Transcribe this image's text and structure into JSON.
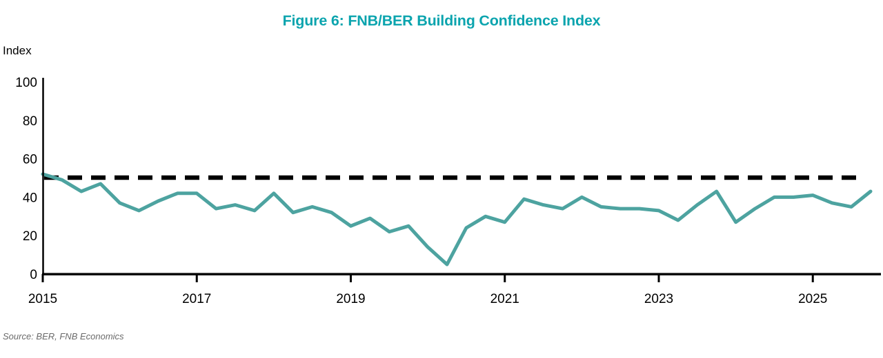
{
  "title": "Figure 6: FNB/BER Building Confidence Index",
  "y_axis_label": "Index",
  "source_note": "Source: BER, FNB Economics",
  "colors": {
    "title_teal": "#0ba4ae",
    "series_teal": "#4da3a0",
    "benchmark_black": "#000000",
    "axis_black": "#000000",
    "source_gray": "#6a6a6a"
  },
  "chart_data": {
    "type": "line",
    "title": "Figure 6: FNB/BER Building Confidence Index",
    "xlabel": "",
    "ylabel": "Index",
    "ylim": [
      0,
      100
    ],
    "y_ticks": [
      0,
      20,
      40,
      60,
      80,
      100
    ],
    "x_tick_labels": [
      "2015",
      "2017",
      "2019",
      "2021",
      "2023",
      "2025"
    ],
    "frequency": "quarterly",
    "grid": false,
    "legend": "none",
    "reference_line": {
      "value": 50,
      "style": "dashed",
      "color": "#000000"
    },
    "series": [
      {
        "name": "FNB/BER Building Confidence Index",
        "color": "#4da3a0",
        "quarters": [
          "2015Q1",
          "2015Q2",
          "2015Q3",
          "2015Q4",
          "2016Q1",
          "2016Q2",
          "2016Q3",
          "2016Q4",
          "2017Q1",
          "2017Q2",
          "2017Q3",
          "2017Q4",
          "2018Q1",
          "2018Q2",
          "2018Q3",
          "2018Q4",
          "2019Q1",
          "2019Q2",
          "2019Q3",
          "2019Q4",
          "2020Q1",
          "2020Q2",
          "2020Q3",
          "2020Q4",
          "2021Q1",
          "2021Q2",
          "2021Q3",
          "2021Q4",
          "2022Q1",
          "2022Q2",
          "2022Q3",
          "2022Q4",
          "2023Q1",
          "2023Q2",
          "2023Q3",
          "2023Q4",
          "2024Q1",
          "2024Q2",
          "2024Q3",
          "2024Q4",
          "2025Q1",
          "2025Q2",
          "2025Q3",
          "2025Q4"
        ],
        "values": [
          52,
          49,
          43,
          47,
          37,
          33,
          38,
          42,
          42,
          34,
          36,
          33,
          42,
          32,
          35,
          32,
          25,
          29,
          22,
          25,
          14,
          5,
          24,
          30,
          27,
          39,
          36,
          34,
          40,
          35,
          34,
          34,
          33,
          28,
          36,
          43,
          27,
          34,
          40,
          40,
          41,
          37,
          35,
          43
        ]
      }
    ]
  }
}
